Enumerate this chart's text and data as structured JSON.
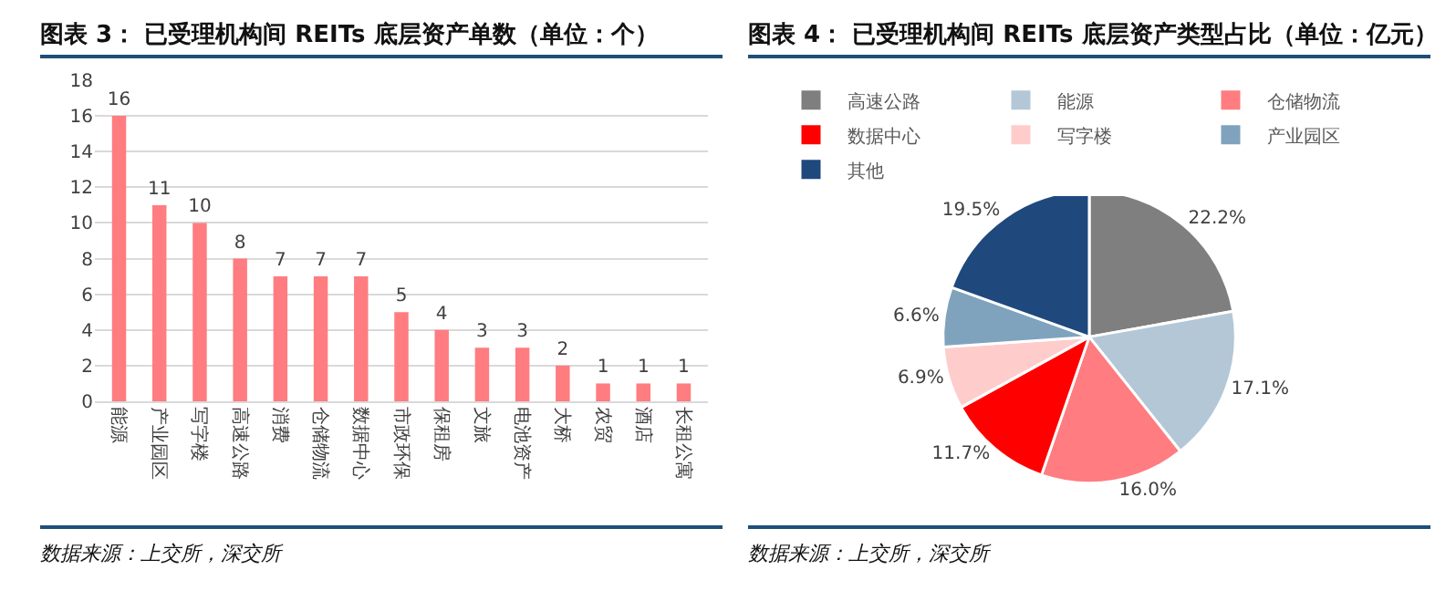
{
  "chart_data": [
    {
      "type": "bar",
      "title": "图表 3：  已受理机构间 REITs 底层资产单数（单位：个）",
      "categories": [
        "能源",
        "产业园区",
        "写字楼",
        "高速公路",
        "消费",
        "仓储物流",
        "数据中心",
        "市政环保",
        "保租房",
        "文旅",
        "电池资产",
        "大桥",
        "农贸",
        "酒店",
        "长租公寓"
      ],
      "values": [
        16,
        11,
        10,
        8,
        7,
        7,
        7,
        5,
        4,
        3,
        3,
        2,
        1,
        1,
        1
      ],
      "color": "#ff7c80",
      "ylim": [
        0,
        18
      ],
      "yticks": [
        0,
        2,
        4,
        6,
        8,
        10,
        12,
        14,
        16,
        18
      ],
      "grid": "y",
      "data_labels": true,
      "legend": false,
      "annotations": [
        "数据来源：上交所，深交所"
      ]
    },
    {
      "type": "pie",
      "title": "图表 4：  已受理机构间 REITs 底层资产类型占比（单位：亿元）",
      "categories": [
        "高速公路",
        "能源",
        "仓储物流",
        "数据中心",
        "写字楼",
        "产业园区",
        "其他"
      ],
      "values": [
        22.2,
        17.1,
        16.0,
        11.7,
        6.9,
        6.6,
        19.5
      ],
      "value_labels": [
        "22.2%",
        "17.1%",
        "16.0%",
        "11.7%",
        "6.9%",
        "6.6%",
        "19.5%"
      ],
      "colors": [
        "#7f7f7f",
        "#b4c7d6",
        "#ff7c80",
        "#ff0000",
        "#ffcccc",
        "#7fa3bd",
        "#1f497d"
      ],
      "legend": "top",
      "annotations": [
        "数据来源：上交所，深交所"
      ]
    }
  ]
}
